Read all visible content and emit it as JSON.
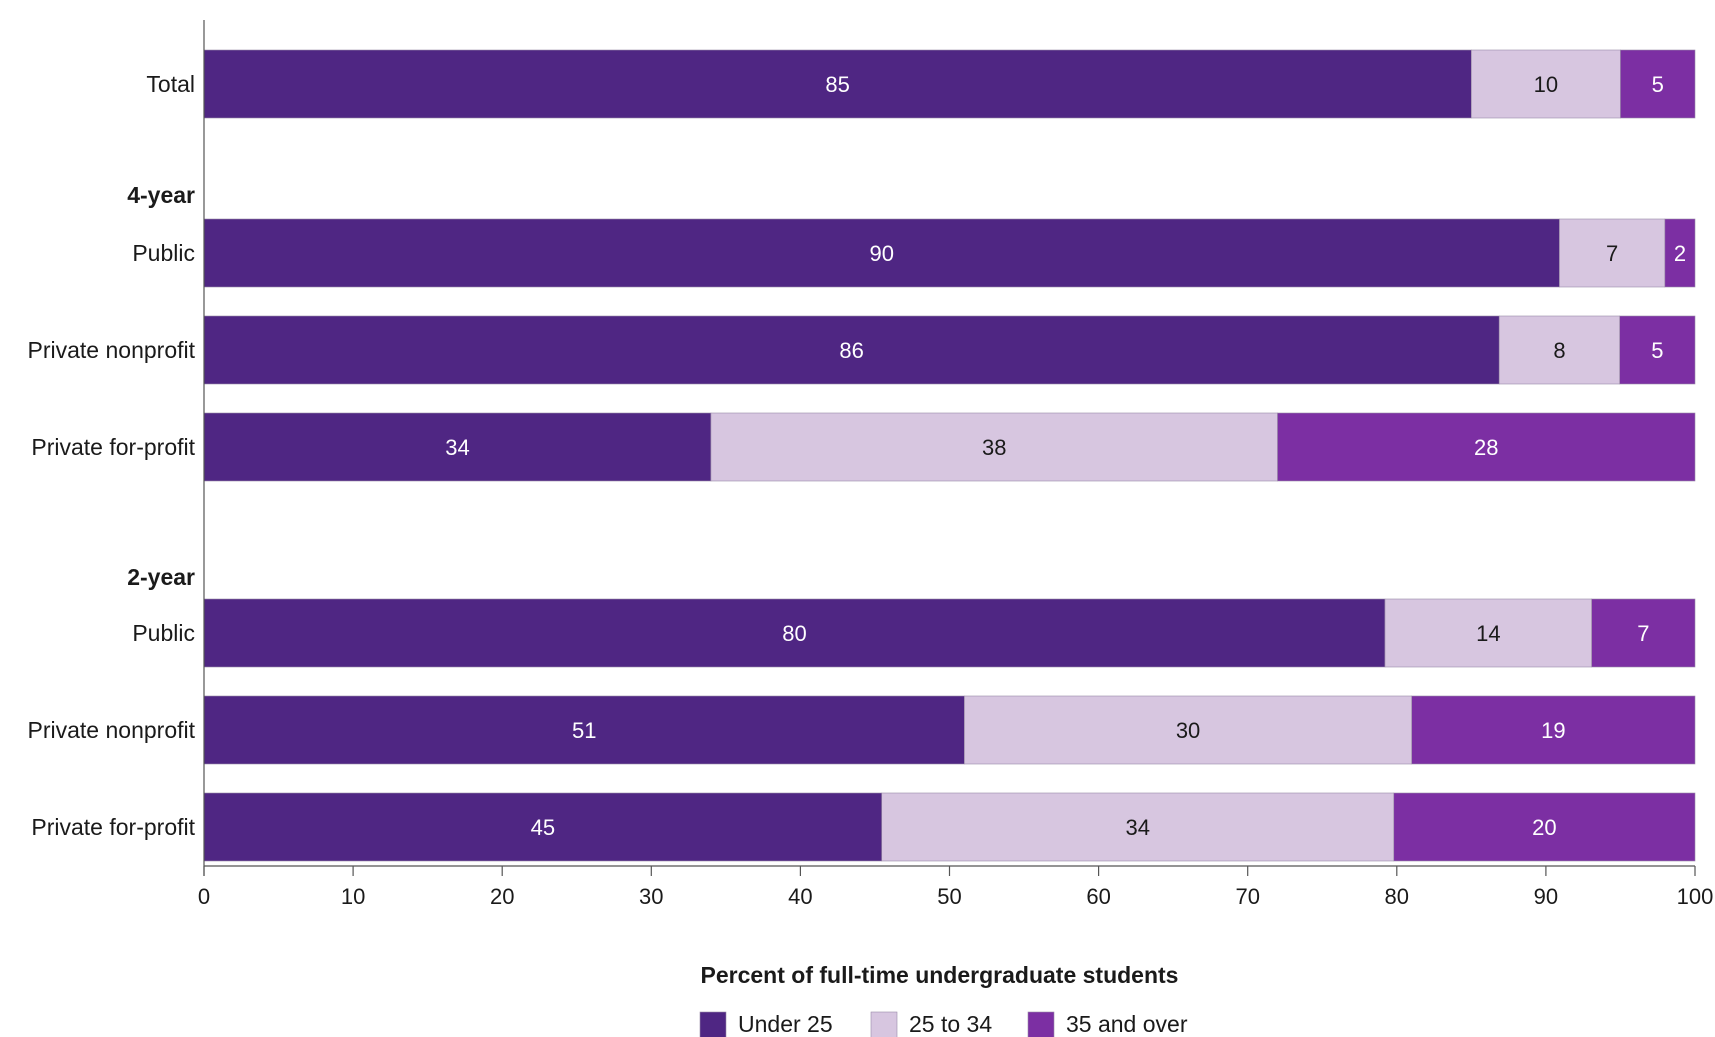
{
  "chart_data": {
    "type": "bar",
    "orientation": "horizontal",
    "stacked": true,
    "xlabel": "Percent of full-time undergraduate students",
    "xlim": [
      0,
      100
    ],
    "xticks": [
      "0",
      "10",
      "20",
      "30",
      "40",
      "50",
      "60",
      "70",
      "80",
      "90",
      "100"
    ],
    "grid": false,
    "legend_position": "bottom",
    "rows": [
      {
        "label": "Total",
        "kind": "category"
      },
      {
        "label": "4-year",
        "kind": "group"
      },
      {
        "label": "Public",
        "kind": "category"
      },
      {
        "label": "Private nonprofit",
        "kind": "category"
      },
      {
        "label": "Private for-profit",
        "kind": "category"
      },
      {
        "label": "2-year",
        "kind": "group"
      },
      {
        "label": "Public",
        "kind": "category"
      },
      {
        "label": "Private nonprofit",
        "kind": "category"
      },
      {
        "label": "Private for-profit",
        "kind": "category"
      }
    ],
    "series": [
      {
        "name": "Under 25",
        "color": "#4f2683",
        "text_color": "#ffffff",
        "values": [
          85,
          null,
          90,
          86,
          34,
          null,
          80,
          51,
          45
        ]
      },
      {
        "name": "25 to 34",
        "color": "#d7c6e0",
        "text_color": "#1a1a1a",
        "values": [
          10,
          null,
          7,
          8,
          38,
          null,
          14,
          30,
          34
        ]
      },
      {
        "name": "35 and over",
        "color": "#7c2fa3",
        "text_color": "#ffffff",
        "values": [
          5,
          null,
          2,
          5,
          28,
          null,
          7,
          19,
          20
        ]
      }
    ]
  }
}
